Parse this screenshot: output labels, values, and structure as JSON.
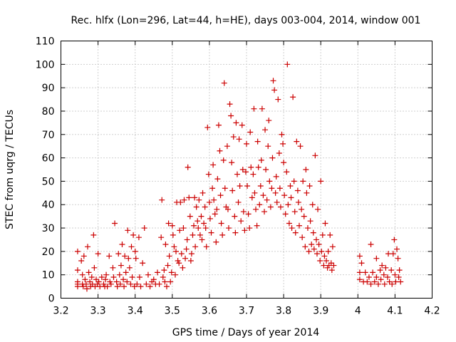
{
  "chart_data": {
    "type": "scatter",
    "title": "Rec. hlfx (Lon=296, Lat=44, h=HE), days 003-004, 2014, window 001",
    "xlabel": "GPS time / Days of year 2014",
    "ylabel": "STEC from uqrg / TECUs",
    "xlim": [
      3.2,
      4.2
    ],
    "ylim": [
      0,
      110
    ],
    "xticks": [
      "3.2",
      "3.3",
      "3.4",
      "3.5",
      "3.6",
      "3.7",
      "3.8",
      "3.9",
      "4",
      "4.1",
      "4.2"
    ],
    "yticks": [
      "0",
      "10",
      "20",
      "30",
      "40",
      "50",
      "60",
      "70",
      "80",
      "90",
      "100",
      "110"
    ],
    "grid": true,
    "marker": "+",
    "series": [
      {
        "name": "STEC",
        "color": "#cc0000",
        "points": [
          [
            3.245,
            20
          ],
          [
            3.245,
            12
          ],
          [
            3.245,
            7
          ],
          [
            3.245,
            6
          ],
          [
            3.245,
            5
          ],
          [
            3.255,
            16
          ],
          [
            3.258,
            10
          ],
          [
            3.258,
            6
          ],
          [
            3.26,
            5
          ],
          [
            3.262,
            18
          ],
          [
            3.265,
            8
          ],
          [
            3.268,
            6
          ],
          [
            3.27,
            4
          ],
          [
            3.272,
            22
          ],
          [
            3.275,
            11
          ],
          [
            3.278,
            7
          ],
          [
            3.28,
            5
          ],
          [
            3.283,
            9
          ],
          [
            3.285,
            6
          ],
          [
            3.288,
            27
          ],
          [
            3.29,
            13
          ],
          [
            3.292,
            5
          ],
          [
            3.295,
            8
          ],
          [
            3.298,
            6
          ],
          [
            3.3,
            19
          ],
          [
            3.302,
            7
          ],
          [
            3.305,
            5
          ],
          [
            3.31,
            9
          ],
          [
            3.315,
            6
          ],
          [
            3.318,
            5
          ],
          [
            3.32,
            8
          ],
          [
            3.322,
            10
          ],
          [
            3.325,
            5
          ],
          [
            3.33,
            18
          ],
          [
            3.332,
            7
          ],
          [
            3.335,
            6
          ],
          [
            3.34,
            13
          ],
          [
            3.342,
            9
          ],
          [
            3.345,
            32
          ],
          [
            3.35,
            7
          ],
          [
            3.352,
            5
          ],
          [
            3.355,
            19
          ],
          [
            3.358,
            10
          ],
          [
            3.36,
            6
          ],
          [
            3.362,
            14
          ],
          [
            3.365,
            23
          ],
          [
            3.368,
            8
          ],
          [
            3.37,
            5
          ],
          [
            3.372,
            18
          ],
          [
            3.375,
            11
          ],
          [
            3.378,
            7
          ],
          [
            3.38,
            29
          ],
          [
            3.382,
            17
          ],
          [
            3.385,
            13
          ],
          [
            3.388,
            6
          ],
          [
            3.39,
            22
          ],
          [
            3.392,
            9
          ],
          [
            3.395,
            27
          ],
          [
            3.398,
            5
          ],
          [
            3.4,
            20
          ],
          [
            3.402,
            17
          ],
          [
            3.405,
            6
          ],
          [
            3.41,
            26
          ],
          [
            3.412,
            9
          ],
          [
            3.415,
            5
          ],
          [
            3.42,
            15
          ],
          [
            3.425,
            30
          ],
          [
            3.43,
            6
          ],
          [
            3.435,
            10
          ],
          [
            3.44,
            5
          ],
          [
            3.445,
            7
          ],
          [
            3.45,
            8
          ],
          [
            3.455,
            6
          ],
          [
            3.46,
            11
          ],
          [
            3.465,
            6
          ],
          [
            3.47,
            26
          ],
          [
            3.472,
            42
          ],
          [
            3.475,
            9
          ],
          [
            3.478,
            12
          ],
          [
            3.48,
            7
          ],
          [
            3.482,
            23
          ],
          [
            3.485,
            5
          ],
          [
            3.488,
            14
          ],
          [
            3.49,
            32
          ],
          [
            3.492,
            18
          ],
          [
            3.495,
            7
          ],
          [
            3.498,
            11
          ],
          [
            3.5,
            31
          ],
          [
            3.502,
            27
          ],
          [
            3.505,
            22
          ],
          [
            3.508,
            10
          ],
          [
            3.51,
            20
          ],
          [
            3.512,
            41
          ],
          [
            3.515,
            16
          ],
          [
            3.518,
            15
          ],
          [
            3.52,
            29
          ],
          [
            3.522,
            41
          ],
          [
            3.525,
            19
          ],
          [
            3.528,
            13
          ],
          [
            3.53,
            30
          ],
          [
            3.532,
            42
          ],
          [
            3.535,
            17
          ],
          [
            3.538,
            21
          ],
          [
            3.54,
            25
          ],
          [
            3.542,
            56
          ],
          [
            3.545,
            43
          ],
          [
            3.548,
            35
          ],
          [
            3.55,
            16
          ],
          [
            3.552,
            19
          ],
          [
            3.555,
            27
          ],
          [
            3.558,
            31
          ],
          [
            3.56,
            43
          ],
          [
            3.562,
            22
          ],
          [
            3.565,
            39
          ],
          [
            3.568,
            33
          ],
          [
            3.57,
            30
          ],
          [
            3.572,
            42
          ],
          [
            3.575,
            27
          ],
          [
            3.578,
            35
          ],
          [
            3.58,
            25
          ],
          [
            3.582,
            45
          ],
          [
            3.585,
            32
          ],
          [
            3.588,
            39
          ],
          [
            3.59,
            30
          ],
          [
            3.592,
            22
          ],
          [
            3.595,
            73
          ],
          [
            3.598,
            53
          ],
          [
            3.6,
            41
          ],
          [
            3.602,
            34
          ],
          [
            3.605,
            28
          ],
          [
            3.608,
            47
          ],
          [
            3.61,
            57
          ],
          [
            3.612,
            42
          ],
          [
            3.615,
            36
          ],
          [
            3.618,
            24
          ],
          [
            3.62,
            38
          ],
          [
            3.622,
            51
          ],
          [
            3.625,
            74
          ],
          [
            3.628,
            63
          ],
          [
            3.63,
            44
          ],
          [
            3.632,
            32
          ],
          [
            3.635,
            27
          ],
          [
            3.638,
            59
          ],
          [
            3.64,
            92
          ],
          [
            3.642,
            47
          ],
          [
            3.645,
            39
          ],
          [
            3.648,
            65
          ],
          [
            3.65,
            38
          ],
          [
            3.652,
            30
          ],
          [
            3.655,
            83
          ],
          [
            3.658,
            78
          ],
          [
            3.66,
            58
          ],
          [
            3.662,
            46
          ],
          [
            3.665,
            69
          ],
          [
            3.668,
            35
          ],
          [
            3.67,
            28
          ],
          [
            3.672,
            75
          ],
          [
            3.675,
            53
          ],
          [
            3.678,
            41
          ],
          [
            3.68,
            68
          ],
          [
            3.682,
            48
          ],
          [
            3.685,
            33
          ],
          [
            3.688,
            74
          ],
          [
            3.69,
            55
          ],
          [
            3.692,
            37
          ],
          [
            3.695,
            29
          ],
          [
            3.698,
            54
          ],
          [
            3.7,
            66
          ],
          [
            3.702,
            48
          ],
          [
            3.705,
            36
          ],
          [
            3.708,
            30
          ],
          [
            3.71,
            71
          ],
          [
            3.712,
            56
          ],
          [
            3.715,
            43
          ],
          [
            3.718,
            53
          ],
          [
            3.72,
            81
          ],
          [
            3.722,
            45
          ],
          [
            3.725,
            38
          ],
          [
            3.728,
            31
          ],
          [
            3.73,
            67
          ],
          [
            3.732,
            56
          ],
          [
            3.735,
            40
          ],
          [
            3.738,
            48
          ],
          [
            3.74,
            59
          ],
          [
            3.742,
            81
          ],
          [
            3.745,
            44
          ],
          [
            3.748,
            37
          ],
          [
            3.75,
            72
          ],
          [
            3.752,
            55
          ],
          [
            3.755,
            42
          ],
          [
            3.758,
            65
          ],
          [
            3.76,
            76
          ],
          [
            3.762,
            50
          ],
          [
            3.765,
            39
          ],
          [
            3.768,
            47
          ],
          [
            3.77,
            60
          ],
          [
            3.772,
            93
          ],
          [
            3.775,
            89
          ],
          [
            3.778,
            45
          ],
          [
            3.78,
            52
          ],
          [
            3.782,
            41
          ],
          [
            3.785,
            85
          ],
          [
            3.788,
            62
          ],
          [
            3.79,
            47
          ],
          [
            3.792,
            39
          ],
          [
            3.795,
            70
          ],
          [
            3.798,
            66
          ],
          [
            3.8,
            58
          ],
          [
            3.802,
            44
          ],
          [
            3.805,
            36
          ],
          [
            3.808,
            54
          ],
          [
            3.81,
            100
          ],
          [
            3.812,
            40
          ],
          [
            3.815,
            32
          ],
          [
            3.818,
            48
          ],
          [
            3.82,
            43
          ],
          [
            3.822,
            30
          ],
          [
            3.825,
            86
          ],
          [
            3.828,
            50
          ],
          [
            3.83,
            37
          ],
          [
            3.832,
            28
          ],
          [
            3.835,
            67
          ],
          [
            3.838,
            46
          ],
          [
            3.84,
            41
          ],
          [
            3.842,
            31
          ],
          [
            3.845,
            65
          ],
          [
            3.848,
            38
          ],
          [
            3.85,
            26
          ],
          [
            3.852,
            50
          ],
          [
            3.855,
            35
          ],
          [
            3.858,
            22
          ],
          [
            3.86,
            55
          ],
          [
            3.862,
            45
          ],
          [
            3.865,
            30
          ],
          [
            3.868,
            20
          ],
          [
            3.87,
            48
          ],
          [
            3.872,
            33
          ],
          [
            3.875,
            23
          ],
          [
            3.878,
            40
          ],
          [
            3.88,
            28
          ],
          [
            3.882,
            21
          ],
          [
            3.885,
            61
          ],
          [
            3.888,
            25
          ],
          [
            3.89,
            19
          ],
          [
            3.892,
            38
          ],
          [
            3.895,
            23
          ],
          [
            3.898,
            16
          ],
          [
            3.9,
            50
          ],
          [
            3.902,
            20
          ],
          [
            3.905,
            27
          ],
          [
            3.908,
            14
          ],
          [
            3.91,
            18
          ],
          [
            3.912,
            32
          ],
          [
            3.915,
            16
          ],
          [
            3.918,
            13
          ],
          [
            3.92,
            20
          ],
          [
            3.922,
            14
          ],
          [
            3.925,
            27
          ],
          [
            3.928,
            15
          ],
          [
            3.93,
            12
          ],
          [
            3.932,
            22
          ],
          [
            3.935,
            14
          ],
          [
            4.005,
            18
          ],
          [
            4.005,
            11
          ],
          [
            4.005,
            8
          ],
          [
            4.01,
            15
          ],
          [
            4.015,
            7
          ],
          [
            4.02,
            11
          ],
          [
            4.025,
            7
          ],
          [
            4.03,
            9
          ],
          [
            4.035,
            23
          ],
          [
            4.035,
            6
          ],
          [
            4.04,
            11
          ],
          [
            4.045,
            7
          ],
          [
            4.05,
            17
          ],
          [
            4.05,
            9
          ],
          [
            4.055,
            6
          ],
          [
            4.06,
            12
          ],
          [
            4.062,
            8
          ],
          [
            4.065,
            14
          ],
          [
            4.07,
            10
          ],
          [
            4.072,
            6
          ],
          [
            4.075,
            13
          ],
          [
            4.08,
            9
          ],
          [
            4.082,
            19
          ],
          [
            4.085,
            7
          ],
          [
            4.09,
            12
          ],
          [
            4.092,
            6
          ],
          [
            4.095,
            19
          ],
          [
            4.098,
            25
          ],
          [
            4.1,
            10
          ],
          [
            4.102,
            7
          ],
          [
            4.105,
            21
          ],
          [
            4.108,
            17
          ],
          [
            4.11,
            9
          ],
          [
            4.112,
            12
          ],
          [
            4.115,
            7
          ]
        ]
      }
    ]
  }
}
